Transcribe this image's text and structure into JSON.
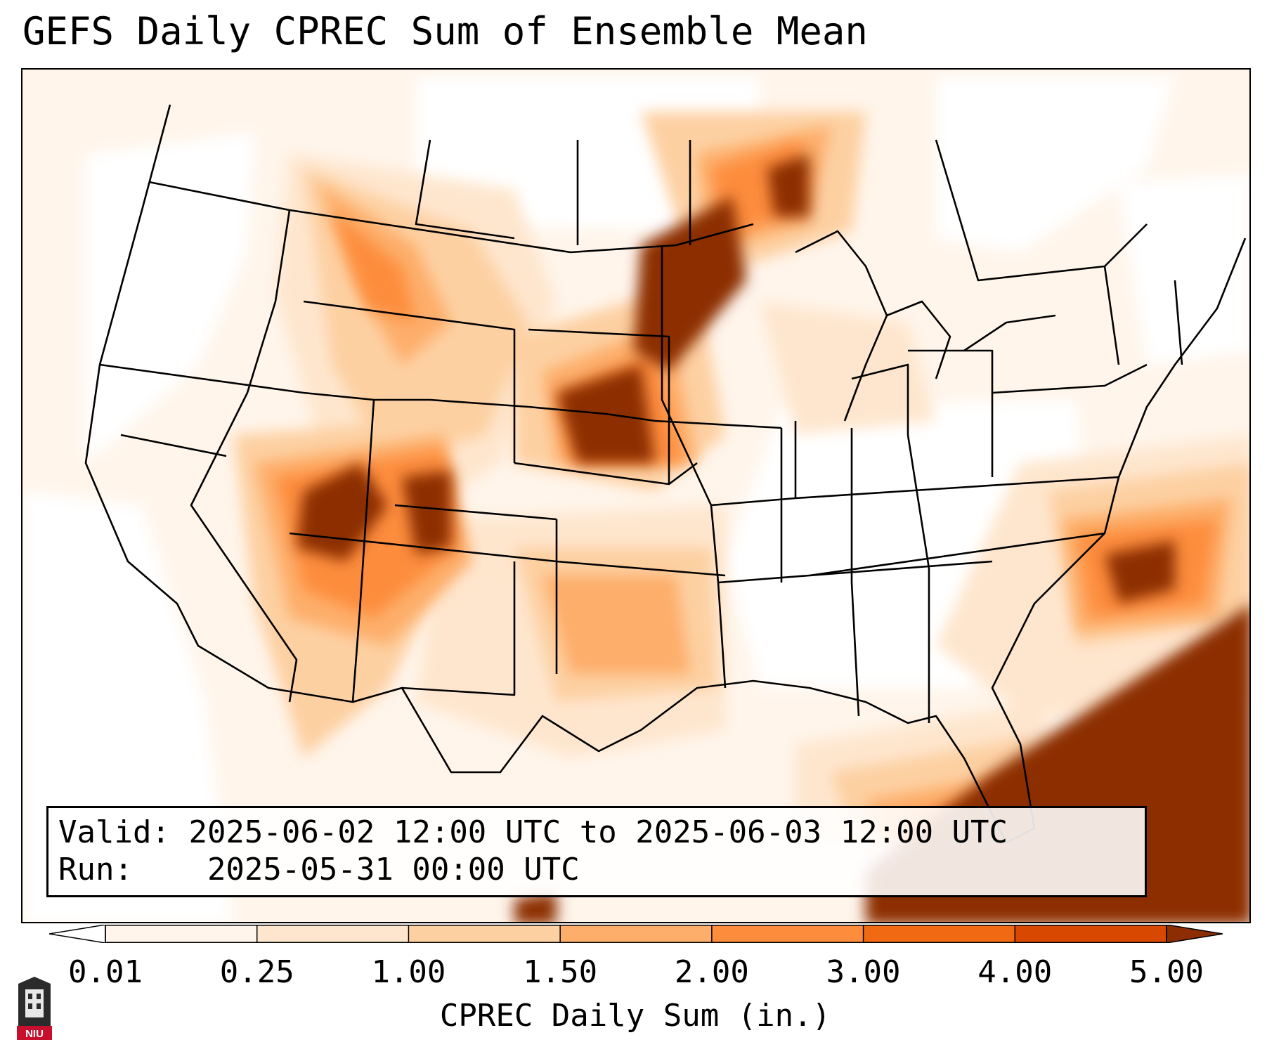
{
  "title": "GEFS Daily CPREC Sum of Ensemble Mean",
  "info": {
    "valid_label": "Valid:",
    "valid_value": "2025-06-02 12:00 UTC to 2025-06-03 12:00 UTC",
    "run_label": "Run:",
    "run_value": "2025-05-31 00:00 UTC"
  },
  "colorbar": {
    "label": "CPREC Daily Sum (in.)",
    "ticks": [
      "0.01",
      "0.25",
      "1.00",
      "1.50",
      "2.00",
      "3.00",
      "4.00",
      "5.00"
    ],
    "colors": [
      "#fff5eb",
      "#fee6ce",
      "#fdd0a2",
      "#fdae6b",
      "#fd8d3c",
      "#f16913",
      "#d94801",
      "#8c2d04"
    ],
    "extend": "both"
  },
  "logo": {
    "text": "NIU",
    "icon": "niu-logo-icon"
  },
  "map_icon": "us-states-map-icon"
}
